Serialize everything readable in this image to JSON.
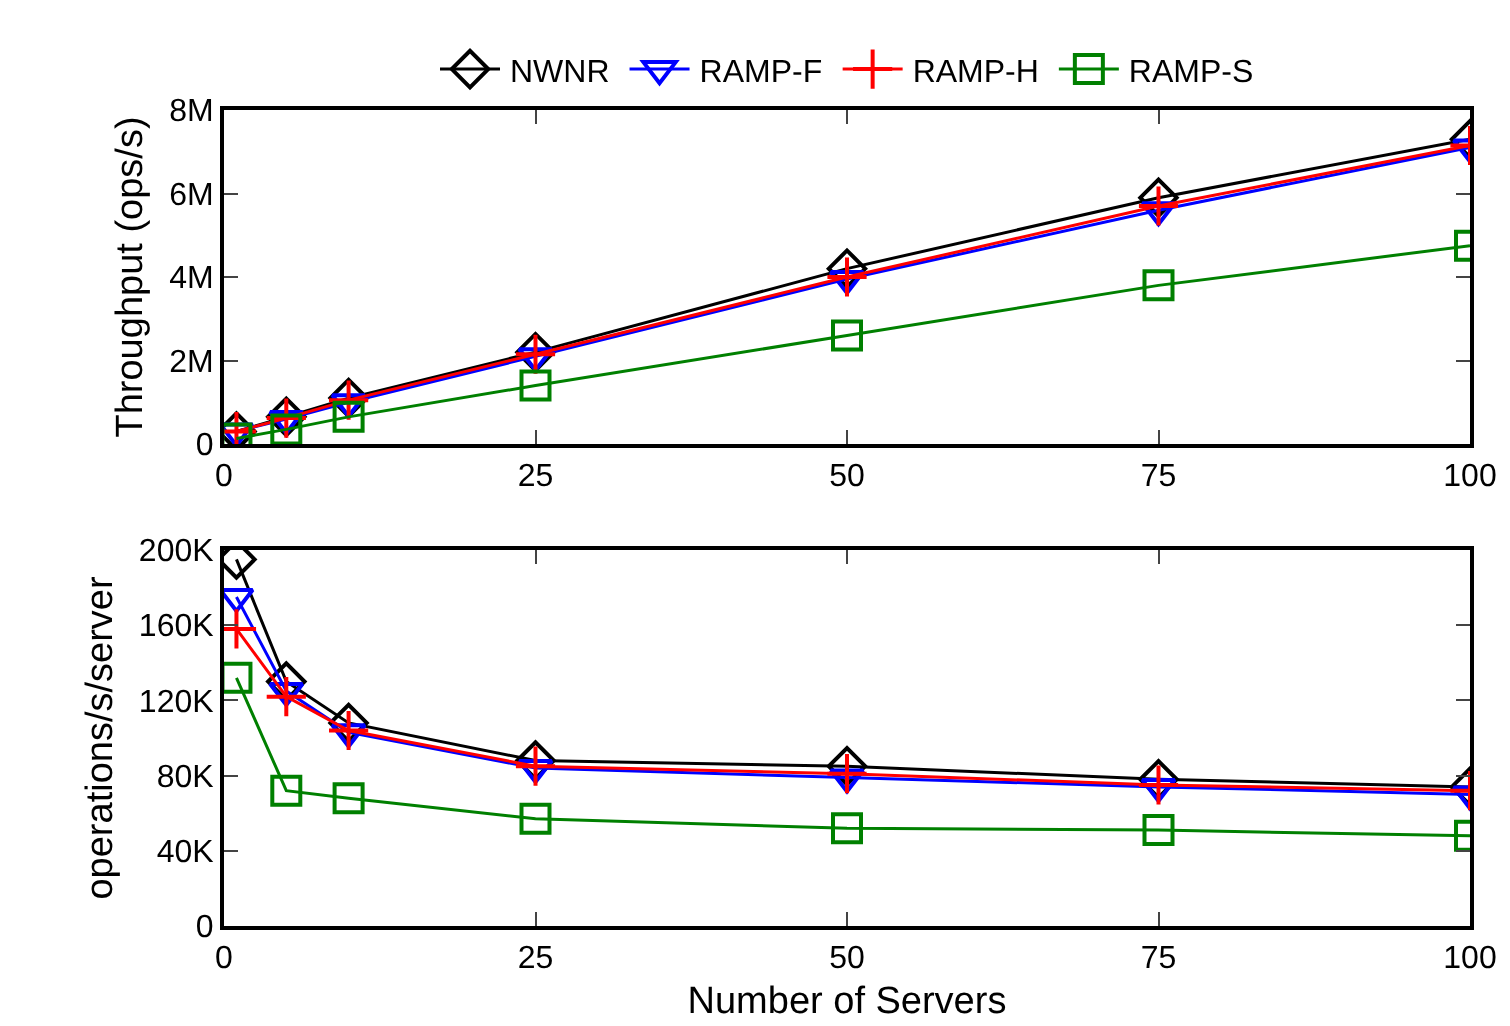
{
  "chart_data": [
    {
      "type": "line",
      "ylabel": "Throughput (ops/s)",
      "x": [
        1,
        5,
        10,
        25,
        50,
        75,
        100
      ],
      "series": [
        {
          "name": "NWNR",
          "color": "#000000",
          "marker": "diamond",
          "values": [
            300000,
            650000,
            1100000,
            2200000,
            4200000,
            5900000,
            7300000
          ]
        },
        {
          "name": "RAMP-F",
          "color": "#0000ff",
          "marker": "triangle",
          "values": [
            300000,
            600000,
            1000000,
            2100000,
            3950000,
            5600000,
            7100000
          ]
        },
        {
          "name": "RAMP-H",
          "color": "#ff0000",
          "marker": "cross",
          "values": [
            300000,
            620000,
            1050000,
            2150000,
            4000000,
            5700000,
            7150000
          ]
        },
        {
          "name": "RAMP-S",
          "color": "#008000",
          "marker": "square",
          "values": [
            130000,
            350000,
            650000,
            1400000,
            2600000,
            3800000,
            4750000
          ]
        }
      ],
      "xlim": [
        0,
        100
      ],
      "xticks": [
        0,
        25,
        50,
        75,
        100
      ],
      "ylim": [
        0,
        8000000
      ],
      "yticks": [
        0,
        {
          "value": 2000000,
          "label": "2M"
        },
        {
          "value": 4000000,
          "label": "4M"
        },
        {
          "value": 6000000,
          "label": "6M"
        },
        {
          "value": 8000000,
          "label": "8M"
        }
      ],
      "grid": false,
      "legend": "top",
      "line_style": "solid"
    },
    {
      "type": "line",
      "xlabel": "Number of Servers",
      "ylabel": "operations/s/server",
      "x": [
        1,
        5,
        10,
        25,
        50,
        75,
        100
      ],
      "series": [
        {
          "color": "#000000",
          "marker": "diamond",
          "values": [
            195000,
            130000,
            108000,
            88000,
            85000,
            78000,
            74000
          ]
        },
        {
          "color": "#0000ff",
          "marker": "triangle",
          "values": [
            175000,
            125000,
            103000,
            84000,
            79000,
            74000,
            70000
          ]
        },
        {
          "color": "#ff0000",
          "marker": "cross",
          "values": [
            158000,
            122000,
            104000,
            85000,
            81000,
            75000,
            72000
          ]
        },
        {
          "color": "#008000",
          "marker": "square",
          "values": [
            132000,
            72000,
            68000,
            57000,
            52000,
            51000,
            48000
          ]
        }
      ],
      "xlim": [
        0,
        100
      ],
      "xticks": [
        0,
        25,
        50,
        75,
        100
      ],
      "ylim": [
        0,
        200000
      ],
      "yticks": [
        0,
        {
          "value": 40000,
          "label": "40K"
        },
        {
          "value": 80000,
          "label": "80K"
        },
        {
          "value": 120000,
          "label": "120K"
        },
        {
          "value": 160000,
          "label": "160K"
        },
        {
          "value": 200000,
          "label": "200K"
        }
      ],
      "grid": false,
      "legend": false,
      "line_style": "solid"
    }
  ]
}
